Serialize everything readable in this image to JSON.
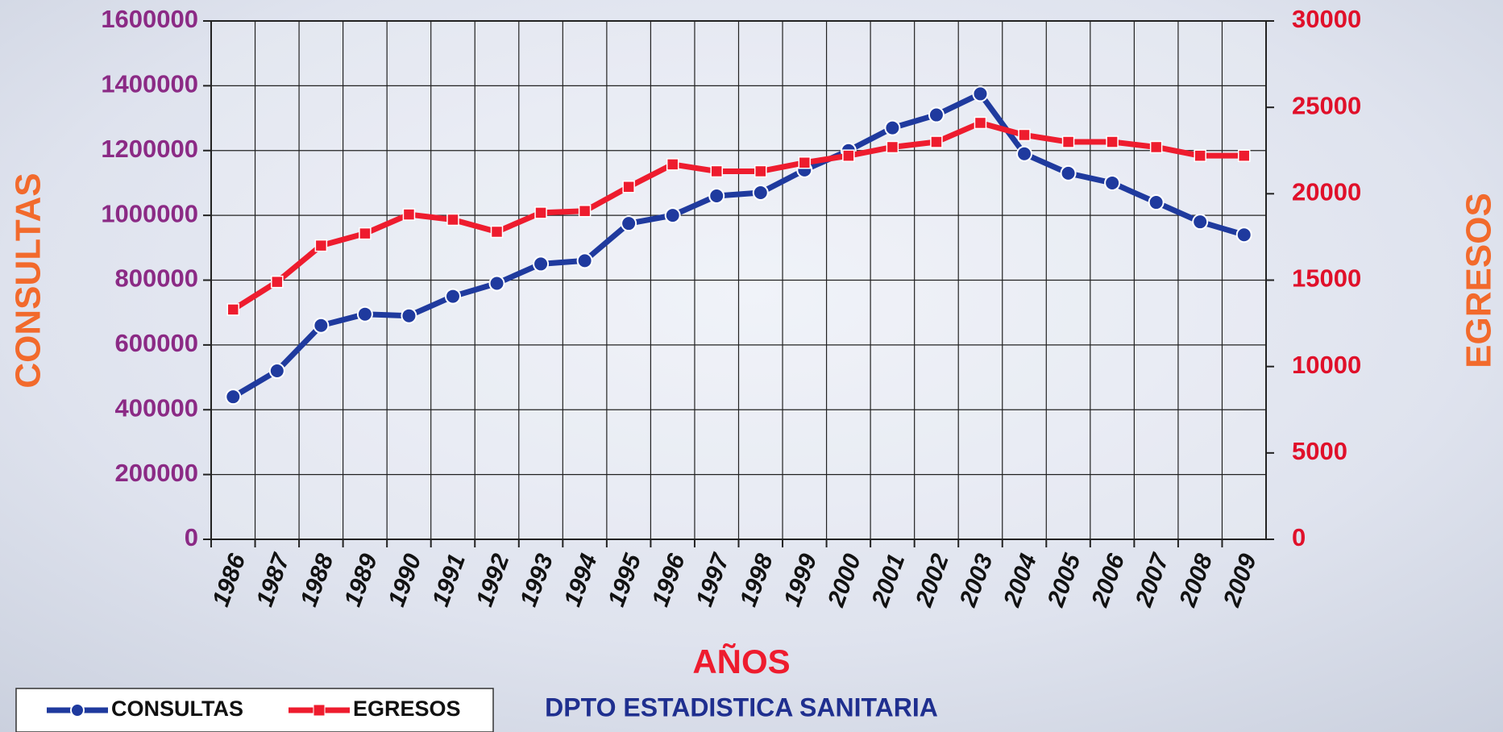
{
  "chart_data": {
    "type": "line",
    "categories": [
      "1986",
      "1987",
      "1988",
      "1989",
      "1990",
      "1991",
      "1992",
      "1993",
      "1994",
      "1995",
      "1996",
      "1997",
      "1998",
      "1999",
      "2000",
      "2001",
      "2002",
      "2003",
      "2004",
      "2005",
      "2006",
      "2007",
      "2008",
      "2009"
    ],
    "series": [
      {
        "name": "CONSULTAS",
        "color": "#1f3a9e",
        "values": [
          440000,
          520000,
          660000,
          695000,
          690000,
          750000,
          790000,
          850000,
          860000,
          975000,
          1000000,
          1060000,
          1070000,
          1140000,
          1200000,
          1270000,
          1310000,
          1375000,
          1190000,
          1130000,
          1100000,
          1040000,
          980000,
          940000
        ]
      },
      {
        "name": "EGRESOS",
        "color": "#ee1c2e",
        "axis": "y2",
        "values": [
          13300,
          14900,
          17000,
          17700,
          18800,
          18500,
          17800,
          18900,
          19000,
          20400,
          21700,
          21300,
          21300,
          21800,
          22200,
          22700,
          23000,
          24100,
          23400,
          23000,
          23000,
          22700,
          22200,
          22200
        ]
      }
    ],
    "xlabel": "AÑOS",
    "ylabel": "CONSULTAS",
    "y2label": "EGRESOS",
    "footer": "DPTO ESTADISTICA SANITARIA",
    "ylim": [
      0,
      1600000
    ],
    "yticks": [
      0,
      200000,
      400000,
      600000,
      800000,
      1000000,
      1200000,
      1400000,
      1600000
    ],
    "y2lim": [
      0,
      30000
    ],
    "y2ticks": [
      0,
      5000,
      10000,
      15000,
      20000,
      25000,
      30000
    ],
    "grid": true,
    "legend": "bottom-left"
  }
}
